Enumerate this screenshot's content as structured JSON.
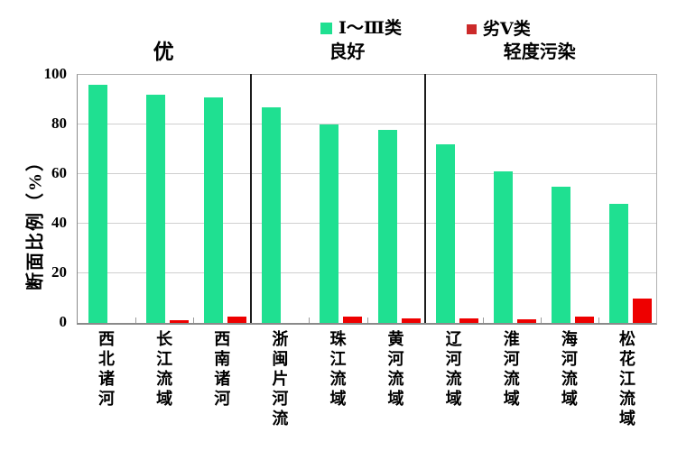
{
  "legend": {
    "items": [
      {
        "label": "Ⅰ～Ⅲ类",
        "color": "#1fe091"
      },
      {
        "label": "劣Ⅴ类",
        "color": "#cc2a2a"
      }
    ]
  },
  "y_axis": {
    "title": "断面比例（%）"
  },
  "chart_data": {
    "type": "bar",
    "categories": [
      "西北诸河",
      "长江流域",
      "西南诸河",
      "浙闽片河流",
      "珠江流域",
      "黄河流域",
      "辽河流域",
      "淮河流域",
      "海河流域",
      "松花江流域"
    ],
    "series": [
      {
        "name": "Ⅰ～Ⅲ类",
        "color": "#1fe091",
        "values": [
          96,
          92,
          91,
          87,
          80,
          78,
          72,
          61,
          55,
          48
        ]
      },
      {
        "name": "劣Ⅴ类",
        "color": "#ee0000",
        "values": [
          0,
          1,
          2.5,
          0,
          2.5,
          2,
          2,
          1.5,
          2.5,
          10
        ]
      }
    ],
    "group_annotations": [
      {
        "label": "优",
        "from": 0,
        "to": 3
      },
      {
        "label": "良好",
        "from": 3,
        "to": 6
      },
      {
        "label": "轻度污染",
        "from": 6,
        "to": 10
      }
    ],
    "title": "",
    "xlabel": "",
    "ylabel": "断面比例（%）",
    "ylim": [
      0,
      100
    ],
    "yticks": [
      0,
      20,
      40,
      60,
      80,
      100
    ],
    "grid": true,
    "legend_position": "top"
  }
}
